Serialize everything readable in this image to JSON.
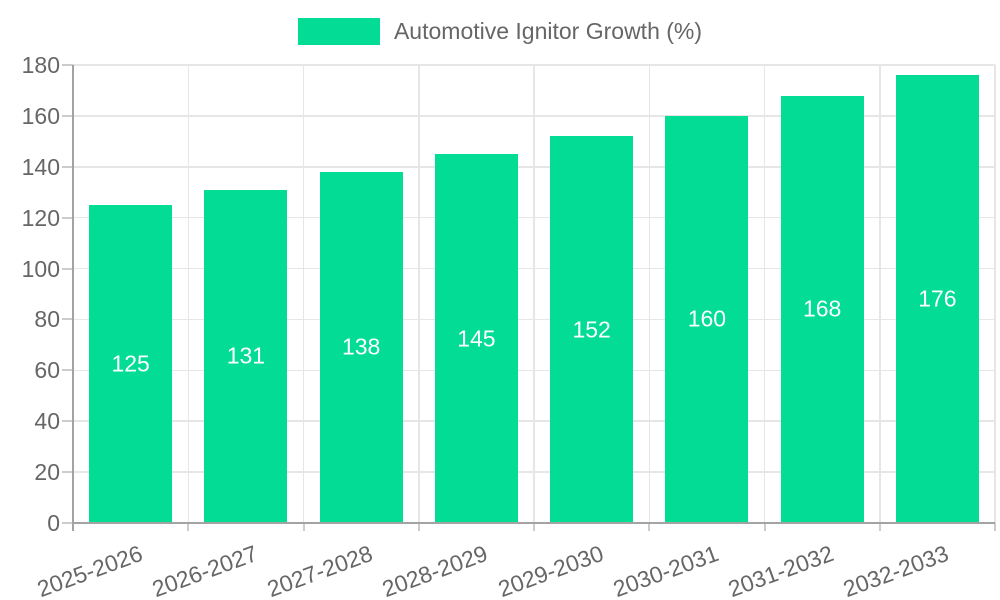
{
  "chart_data": {
    "type": "bar",
    "title": "",
    "legend": "Automotive Ignitor Growth (%)",
    "legend_position": "top-center",
    "categories": [
      "2025-2026",
      "2026-2027",
      "2027-2028",
      "2028-2029",
      "2029-2030",
      "2030-2031",
      "2031-2032",
      "2032-2033"
    ],
    "values": [
      125,
      131,
      138,
      145,
      152,
      160,
      168,
      176
    ],
    "xlabel": "",
    "ylabel": "",
    "ylim": [
      0,
      180
    ],
    "ytick_step": 20,
    "yticks": [
      0,
      20,
      40,
      60,
      80,
      100,
      120,
      140,
      160,
      180
    ],
    "grid": true,
    "value_labels_position": "inside-center",
    "x_label_rotation_deg": -20
  },
  "colors": {
    "bar": "#02DC95",
    "axis_text": "#666666",
    "value_label_text": "#ffffff",
    "grid": "#e6e6e6",
    "axis_line": "#a3a3a3",
    "tick": "#cccccc",
    "background": "#ffffff"
  }
}
